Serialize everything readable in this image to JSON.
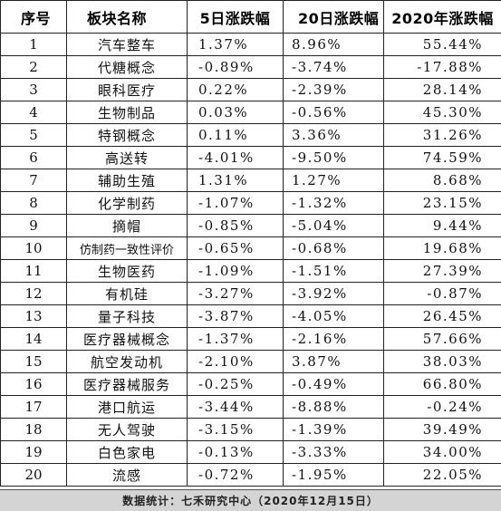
{
  "headers": [
    "序号",
    "板块名称",
    "5日涨跌幅",
    "20日涨跌幅",
    "2020年涨跌幅"
  ],
  "rows": [
    {
      "idx": "1",
      "name": "汽车整车",
      "d5": "1.37%",
      "d20": "8.96%",
      "y2020": "55.44%"
    },
    {
      "idx": "2",
      "name": "代糖概念",
      "d5": "-0.89%",
      "d20": "-3.74%",
      "y2020": "-17.88%"
    },
    {
      "idx": "3",
      "name": "眼科医疗",
      "d5": "0.22%",
      "d20": "-2.39%",
      "y2020": "28.14%"
    },
    {
      "idx": "4",
      "name": "生物制品",
      "d5": "0.03%",
      "d20": "-0.56%",
      "y2020": "45.30%"
    },
    {
      "idx": "5",
      "name": "特钢概念",
      "d5": "0.11%",
      "d20": "3.36%",
      "y2020": "31.26%"
    },
    {
      "idx": "6",
      "name": "高送转",
      "d5": "-4.01%",
      "d20": "-9.50%",
      "y2020": "74.59%"
    },
    {
      "idx": "7",
      "name": "辅助生殖",
      "d5": "1.31%",
      "d20": "1.27%",
      "y2020": "8.68%"
    },
    {
      "idx": "8",
      "name": "化学制药",
      "d5": "-1.07%",
      "d20": "-1.32%",
      "y2020": "23.15%"
    },
    {
      "idx": "9",
      "name": "摘帽",
      "d5": "-0.85%",
      "d20": "-5.04%",
      "y2020": "9.44%"
    },
    {
      "idx": "10",
      "name": "仿制药一致性评价",
      "d5": "-0.65%",
      "d20": "-0.68%",
      "y2020": "19.68%"
    },
    {
      "idx": "11",
      "name": "生物医药",
      "d5": "-1.09%",
      "d20": "-1.51%",
      "y2020": "27.39%"
    },
    {
      "idx": "12",
      "name": "有机硅",
      "d5": "-3.27%",
      "d20": "-3.92%",
      "y2020": "-0.87%"
    },
    {
      "idx": "13",
      "name": "量子科技",
      "d5": "-3.87%",
      "d20": "-4.05%",
      "y2020": "26.45%"
    },
    {
      "idx": "14",
      "name": "医疗器械概念",
      "d5": "-1.37%",
      "d20": "-2.16%",
      "y2020": "57.66%"
    },
    {
      "idx": "15",
      "name": "航空发动机",
      "d5": "-2.10%",
      "d20": "3.87%",
      "y2020": "38.03%"
    },
    {
      "idx": "16",
      "name": "医疗器械服务",
      "d5": "-0.25%",
      "d20": "-0.49%",
      "y2020": "66.80%"
    },
    {
      "idx": "17",
      "name": "港口航运",
      "d5": "-3.44%",
      "d20": "-8.88%",
      "y2020": "-0.24%"
    },
    {
      "idx": "18",
      "name": "无人驾驶",
      "d5": "-3.15%",
      "d20": "-1.39%",
      "y2020": "39.49%"
    },
    {
      "idx": "19",
      "name": "白色家电",
      "d5": "-0.13%",
      "d20": "-3.33%",
      "y2020": "34.00%"
    },
    {
      "idx": "20",
      "name": "流感",
      "d5": "-0.72%",
      "d20": "-1.95%",
      "y2020": "22.05%"
    }
  ],
  "footer": "数据统计：七禾研究中心（2020年12月15日）"
}
